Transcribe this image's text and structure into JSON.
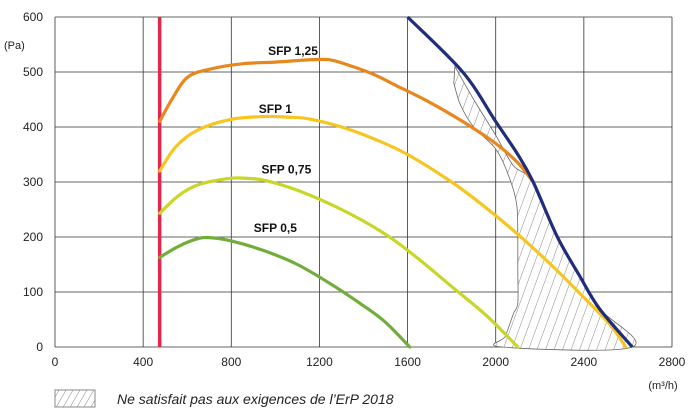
{
  "chart_data": {
    "type": "line",
    "xlabel": "(m³/h)",
    "ylabel": "(Pa)",
    "xlim": [
      0,
      2800
    ],
    "ylim": [
      0,
      600
    ],
    "x_ticks": [
      0,
      400,
      800,
      1200,
      1600,
      2000,
      2400,
      2800
    ],
    "y_ticks": [
      0,
      100,
      200,
      300,
      400,
      500,
      600
    ],
    "grid": true,
    "min_airflow_line": {
      "x": 475,
      "color": "#e0284f"
    },
    "max_curve": {
      "color": "#1f2d7a",
      "points": [
        [
          1600,
          600
        ],
        [
          1850,
          500
        ],
        [
          2000,
          410
        ],
        [
          2100,
          350
        ],
        [
          2170,
          300
        ],
        [
          2280,
          200
        ],
        [
          2380,
          130
        ],
        [
          2470,
          70
        ],
        [
          2620,
          0
        ]
      ]
    },
    "series": [
      {
        "name": "SFP 1,25",
        "color": "#e8871e",
        "points": [
          [
            475,
            410
          ],
          [
            530,
            450
          ],
          [
            600,
            490
          ],
          [
            700,
            505
          ],
          [
            850,
            515
          ],
          [
            1000,
            518
          ],
          [
            1150,
            522
          ],
          [
            1250,
            522
          ],
          [
            1350,
            510
          ],
          [
            1450,
            495
          ],
          [
            1550,
            475
          ],
          [
            1700,
            445
          ],
          [
            1850,
            410
          ],
          [
            2000,
            370
          ],
          [
            2100,
            335
          ],
          [
            2170,
            300
          ]
        ]
      },
      {
        "name": "SFP 1",
        "color": "#f7c520",
        "points": [
          [
            475,
            320
          ],
          [
            550,
            365
          ],
          [
            650,
            395
          ],
          [
            800,
            414
          ],
          [
            950,
            419
          ],
          [
            1050,
            418
          ],
          [
            1150,
            415
          ],
          [
            1300,
            400
          ],
          [
            1450,
            378
          ],
          [
            1600,
            350
          ],
          [
            1800,
            300
          ],
          [
            1950,
            255
          ],
          [
            2100,
            205
          ],
          [
            2250,
            150
          ],
          [
            2400,
            90
          ],
          [
            2520,
            40
          ],
          [
            2590,
            0
          ]
        ]
      },
      {
        "name": "SFP 0,75",
        "color": "#c8d628",
        "points": [
          [
            475,
            243
          ],
          [
            560,
            275
          ],
          [
            650,
            295
          ],
          [
            780,
            306
          ],
          [
            850,
            307
          ],
          [
            950,
            303
          ],
          [
            1100,
            285
          ],
          [
            1300,
            250
          ],
          [
            1500,
            205
          ],
          [
            1650,
            160
          ],
          [
            1800,
            110
          ],
          [
            1950,
            60
          ],
          [
            2040,
            25
          ],
          [
            2100,
            0
          ]
        ]
      },
      {
        "name": "SFP 0,5",
        "color": "#71ad3a",
        "points": [
          [
            475,
            163
          ],
          [
            560,
            183
          ],
          [
            640,
            196
          ],
          [
            700,
            199
          ],
          [
            800,
            193
          ],
          [
            950,
            175
          ],
          [
            1100,
            150
          ],
          [
            1250,
            115
          ],
          [
            1400,
            75
          ],
          [
            1500,
            45
          ],
          [
            1610,
            0
          ]
        ]
      }
    ],
    "hatched_region": {
      "meaning": "Ne satisfait pas aux exigences de l’ErP 2018",
      "boundary": [
        [
          1815,
          510
        ],
        [
          1900,
          450
        ],
        [
          2000,
          385
        ],
        [
          2080,
          330
        ],
        [
          2170,
          300
        ],
        [
          2280,
          200
        ],
        [
          2380,
          130
        ],
        [
          2470,
          70
        ],
        [
          2620,
          0
        ],
        [
          2030,
          0
        ],
        [
          2045,
          20
        ],
        [
          2080,
          60
        ],
        [
          2100,
          80
        ],
        [
          2100,
          140
        ],
        [
          2100,
          200
        ],
        [
          2095,
          260
        ],
        [
          2060,
          310
        ],
        [
          2000,
          360
        ],
        [
          1900,
          400
        ],
        [
          1840,
          440
        ],
        [
          1810,
          480
        ]
      ]
    },
    "legend": {
      "text": "Ne satisfait pas aux exigences de l’ErP 2018",
      "placement": "bottom-left"
    }
  }
}
